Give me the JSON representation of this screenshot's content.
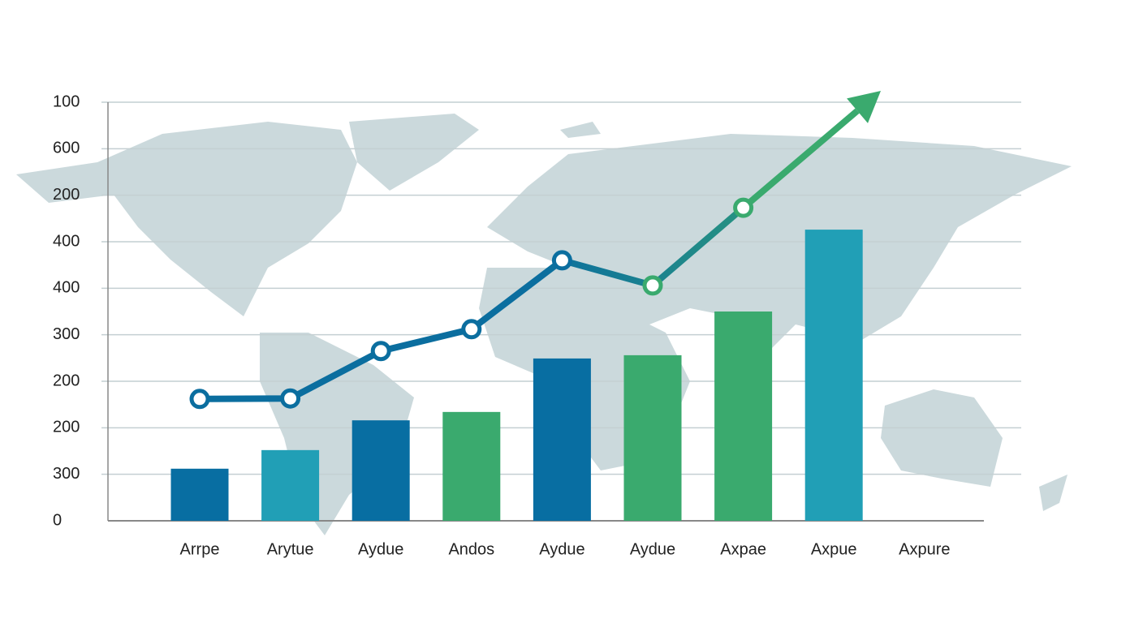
{
  "chart_data": {
    "type": "bar",
    "categories": [
      "Arrpe",
      "Arytue",
      "Aydue",
      "Andos",
      "Aydue",
      "Aydue",
      "Axpae",
      "Axpue",
      "Axpure"
    ],
    "series": [
      {
        "type": "bar",
        "values": [
          1.12,
          1.52,
          2.16,
          2.34,
          3.49,
          3.56,
          4.5,
          6.26,
          null
        ],
        "colors": [
          "#086ea2",
          "#219fb6",
          "#086ea2",
          "#3aaa6e",
          "#086ea2",
          "#3aaa6e",
          "#3aaa6e",
          "#219fb6",
          null
        ]
      },
      {
        "type": "line",
        "values": [
          2.62,
          2.63,
          3.65,
          4.12,
          5.6,
          5.06,
          6.73,
          null,
          null
        ],
        "color_start": "#0b6e9f",
        "color_end": "#3aaa6e"
      }
    ],
    "ylim": [
      0,
      9
    ],
    "yticks": [
      {
        "value": 0,
        "label": "0"
      },
      {
        "value": 1,
        "label": "300"
      },
      {
        "value": 2,
        "label": "200"
      },
      {
        "value": 3,
        "label": "200"
      },
      {
        "value": 4,
        "label": "300"
      },
      {
        "value": 5,
        "label": "400"
      },
      {
        "value": 6,
        "label": "400"
      },
      {
        "value": 7,
        "label": "200"
      },
      {
        "value": 8,
        "label": "600"
      },
      {
        "value": 9,
        "label": "100"
      }
    ],
    "grid": true
  }
}
